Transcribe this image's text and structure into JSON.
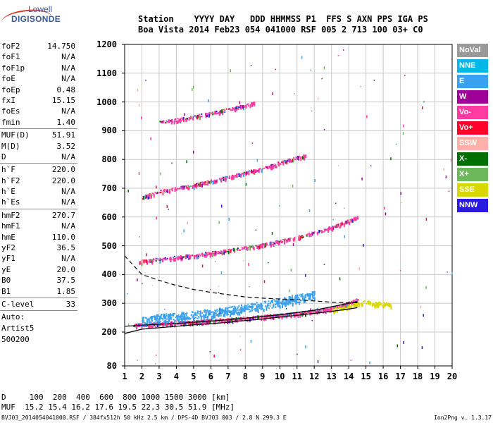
{
  "logo": {
    "line1": "Lowell",
    "line2": "DIGISONDE"
  },
  "header": {
    "line1": "Station    YYYY DAY   DDD HHMMSS P1  FFS S AXN PPS IGA PS",
    "line2": "Boa Vista 2014 Feb23 054 041000 RSF 005 2 713 100 03+ C0"
  },
  "params": [
    {
      "label": "foF2",
      "value": "14.750"
    },
    {
      "label": "foF1",
      "value": "N/A"
    },
    {
      "label": "foF1p",
      "value": "N/A"
    },
    {
      "label": "foE",
      "value": "N/A"
    },
    {
      "label": "foEp",
      "value": "0.48"
    },
    {
      "label": "fxI",
      "value": "15.15"
    },
    {
      "label": "foEs",
      "value": "N/A"
    },
    {
      "label": "fmin",
      "value": "1.40"
    },
    {
      "sep": true
    },
    {
      "label": "MUF(D)",
      "value": "51.91"
    },
    {
      "label": "M(D)",
      "value": "3.52"
    },
    {
      "label": "D",
      "value": "N/A"
    },
    {
      "sep": true
    },
    {
      "label": "h`F",
      "value": "220.0"
    },
    {
      "label": "h`F2",
      "value": "220.0"
    },
    {
      "label": "h`E",
      "value": "N/A"
    },
    {
      "label": "h`Es",
      "value": "N/A"
    },
    {
      "sep": true
    },
    {
      "label": "hmF2",
      "value": "270.7"
    },
    {
      "label": "hmF1",
      "value": "N/A"
    },
    {
      "label": "hmE",
      "value": "110.0"
    },
    {
      "label": "yF2",
      "value": "36.5"
    },
    {
      "label": "yF1",
      "value": "N/A"
    },
    {
      "label": "yE",
      "value": "20.0"
    },
    {
      "label": "B0",
      "value": "37.5"
    },
    {
      "label": "B1",
      "value": "1.85"
    },
    {
      "sep": true
    },
    {
      "label": "C-level",
      "value": "33"
    },
    {
      "sep": true
    },
    {
      "text": "Auto:"
    },
    {
      "text": "Artist5"
    },
    {
      "text": "500200"
    }
  ],
  "legend": [
    {
      "name": "NoVal",
      "color": "#999999"
    },
    {
      "name": "NNE",
      "color": "#00b8e8"
    },
    {
      "name": "E",
      "color": "#3aa0f0"
    },
    {
      "name": "W",
      "color": "#a0009a"
    },
    {
      "name": "Vo-",
      "color": "#ff3aa0"
    },
    {
      "name": "Vo+",
      "color": "#ff0028"
    },
    {
      "name": "SSW",
      "color": "#ffb0a8"
    },
    {
      "name": "X-",
      "color": "#006e00"
    },
    {
      "name": "X+",
      "color": "#6cb85a"
    },
    {
      "name": "SSE",
      "color": "#d8d800"
    },
    {
      "name": "NNW",
      "color": "#2a1ae0"
    }
  ],
  "muf_table": {
    "d_row": "D     100  200  400  600  800 1000 1500 3000 [km]",
    "muf_row": "MUF  15.2 15.4 16.2 17.6 19.5 22.3 30.5 51.9 [MHz]"
  },
  "footer": {
    "left": "BVJ03_2014054041000.RSF / 384fx512h 50 kHz 2.5 km / DPS-4D BVJ03 003 / 2.8 N 299.3 E",
    "right": "Ion2Png v. 1.3.17"
  },
  "chart_data": {
    "type": "scatter",
    "title": "",
    "xlabel": "",
    "ylabel": "",
    "x_units": "MHz",
    "y_units": "km",
    "xlim": [
      1,
      20
    ],
    "ylim": [
      80,
      1200
    ],
    "x_ticks": [
      1,
      2,
      3,
      4,
      5,
      6,
      7,
      8,
      9,
      10,
      11,
      12,
      13,
      14,
      15,
      16,
      17,
      18,
      19,
      20
    ],
    "y_ticks": [
      80,
      200,
      300,
      400,
      500,
      600,
      700,
      800,
      900,
      1000,
      1100,
      1200
    ],
    "grid": true,
    "legend_position": "right",
    "traces": [
      {
        "name": "F2 O-trace (1st hop)",
        "color": "#ff3aa0",
        "x": [
          1.5,
          3,
          5,
          7,
          9,
          11,
          12.5,
          13.5,
          14,
          14.5
        ],
        "y": [
          225,
          230,
          237,
          245,
          255,
          266,
          278,
          292,
          302,
          315
        ]
      },
      {
        "name": "F2 X-trace (1st hop)",
        "color": "#3aa0f0",
        "x": [
          2,
          3,
          4,
          5,
          6,
          7,
          8,
          9,
          10,
          11,
          12
        ],
        "y": [
          240,
          250,
          255,
          262,
          268,
          275,
          285,
          295,
          305,
          318,
          330
        ]
      },
      {
        "name": "2nd hop",
        "color": "#ff3aa0",
        "x": [
          1.8,
          3,
          5,
          7,
          9,
          11,
          13,
          14.5
        ],
        "y": [
          445,
          455,
          468,
          485,
          505,
          530,
          565,
          600
        ]
      },
      {
        "name": "3rd hop",
        "color": "#ff3aa0",
        "x": [
          2,
          3,
          5,
          7,
          9,
          10.5,
          11.5
        ],
        "y": [
          670,
          690,
          712,
          740,
          770,
          800,
          815
        ]
      },
      {
        "name": "4th hop",
        "color": "#ff3aa0",
        "x": [
          3,
          5,
          7,
          8,
          8.5
        ],
        "y": [
          930,
          950,
          975,
          990,
          1000
        ]
      },
      {
        "name": "SSE cluster",
        "color": "#d8d800",
        "x": [
          13,
          13.5,
          14,
          14.5,
          15,
          15.5,
          16,
          16.5
        ],
        "y": [
          275,
          285,
          290,
          300,
          305,
          300,
          298,
          295
        ]
      }
    ],
    "profile_curves": [
      {
        "name": "Electron density profile",
        "style": "dashed",
        "x": [
          1,
          2,
          3,
          4,
          5,
          6,
          7,
          8,
          9,
          10,
          11,
          12,
          13,
          14,
          14.5
        ],
        "y": [
          465,
          400,
          380,
          362,
          348,
          338,
          330,
          322,
          318,
          315,
          312,
          308,
          304,
          302,
          302
        ]
      },
      {
        "name": "Model O-trace",
        "style": "solid",
        "x": [
          1,
          2,
          3,
          4,
          5,
          6,
          7,
          8,
          9,
          10,
          11,
          12,
          13,
          14,
          14.5
        ],
        "y": [
          195,
          210,
          215,
          220,
          225,
          229,
          234,
          240,
          245,
          252,
          258,
          265,
          272,
          280,
          285
        ]
      },
      {
        "name": "Model X-trace",
        "style": "solid",
        "x": [
          1,
          2,
          4,
          6,
          8,
          10,
          12,
          13,
          14,
          14.5
        ],
        "y": [
          220,
          224,
          230,
          238,
          248,
          260,
          276,
          288,
          300,
          305
        ]
      }
    ]
  }
}
